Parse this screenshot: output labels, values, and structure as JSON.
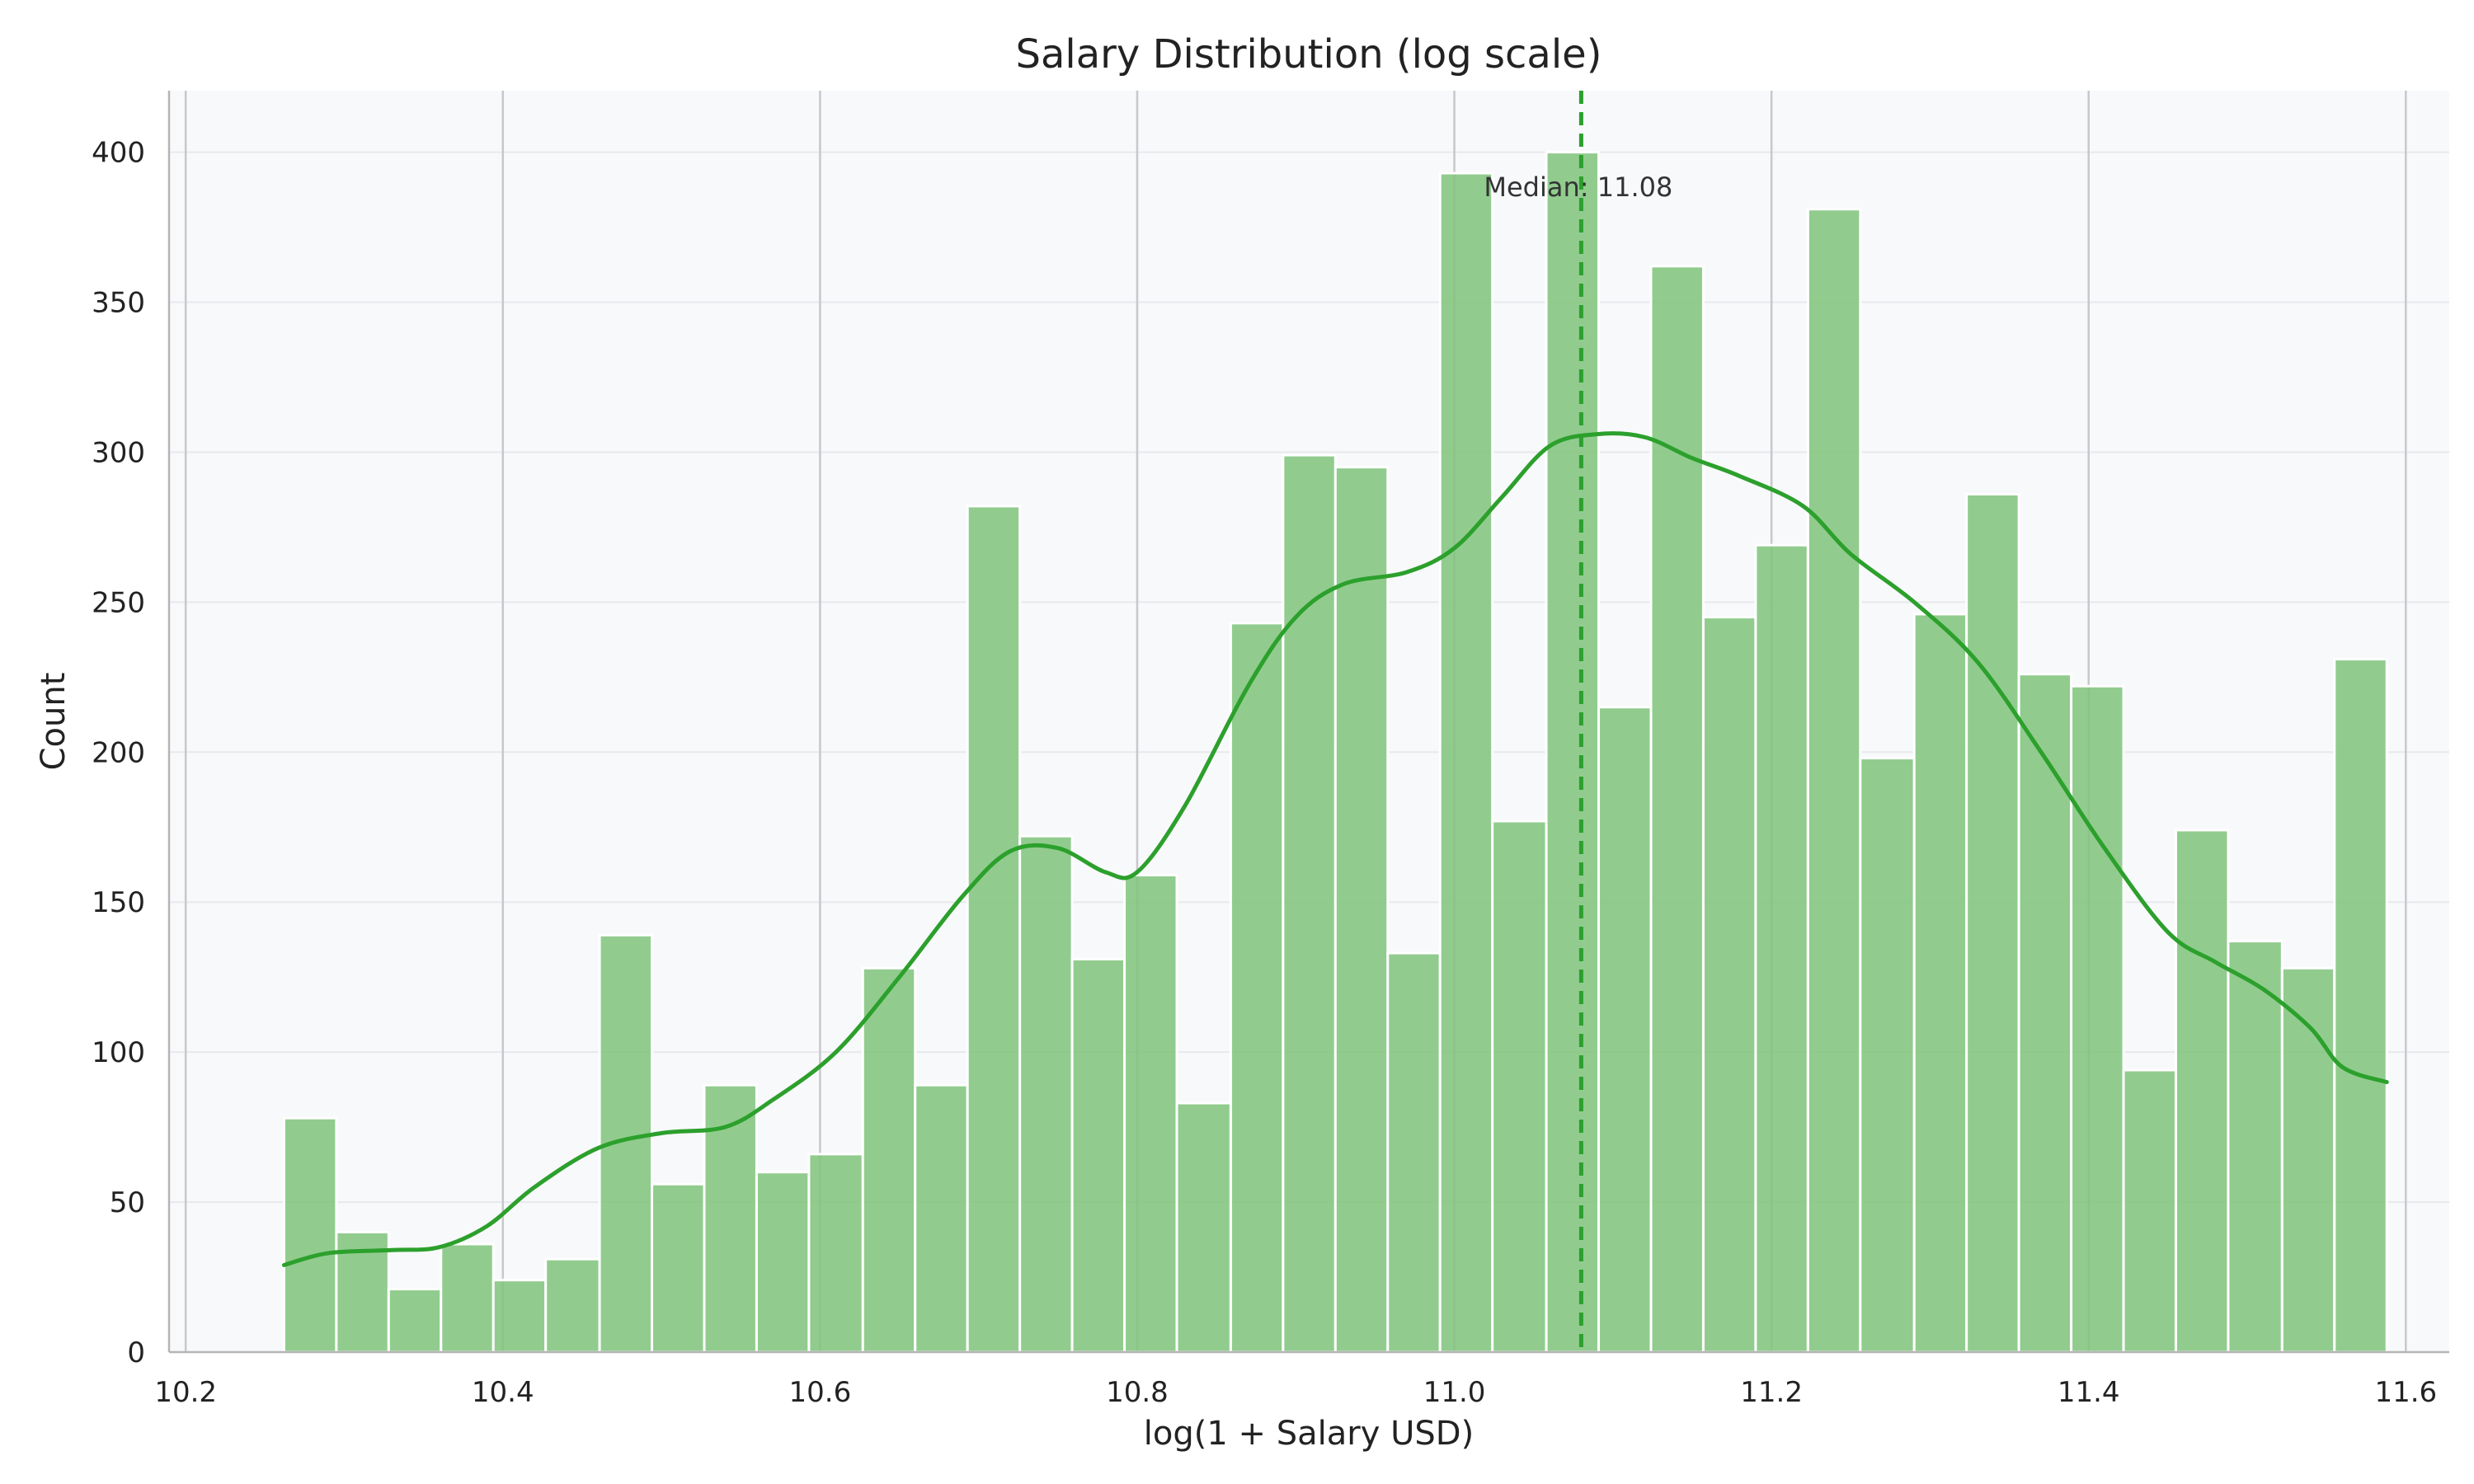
{
  "chart_data": {
    "type": "bar",
    "title": "Salary Distribution (log scale)",
    "xlabel": "log(1 + Salary USD)",
    "ylabel": "Count",
    "xlim": [
      10.2,
      11.6
    ],
    "ylim": [
      0,
      420
    ],
    "x_ticks": [
      "10.2",
      "10.4",
      "10.6",
      "10.8",
      "11.0",
      "11.2",
      "11.4",
      "11.6"
    ],
    "y_ticks": [
      "0",
      "50",
      "100",
      "150",
      "200",
      "250",
      "300",
      "350",
      "400"
    ],
    "grid": true,
    "bin_edges": [
      10.262,
      10.295,
      10.328,
      10.361,
      10.394,
      10.427,
      10.461,
      10.494,
      10.527,
      10.56,
      10.593,
      10.627,
      10.66,
      10.693,
      10.726,
      10.759,
      10.792,
      10.825,
      10.859,
      10.892,
      10.925,
      10.958,
      10.991,
      11.024,
      11.058,
      11.091,
      11.124,
      11.157,
      11.19,
      11.223,
      11.256,
      11.29,
      11.323,
      11.356,
      11.389,
      11.422,
      11.455,
      11.488,
      11.522,
      11.555,
      11.588
    ],
    "counts": [
      78,
      40,
      21,
      36,
      24,
      31,
      139,
      56,
      89,
      60,
      66,
      128,
      89,
      282,
      172,
      131,
      159,
      83,
      243,
      299,
      295,
      133,
      393,
      177,
      400,
      215,
      362,
      245,
      269,
      381,
      198,
      246,
      286,
      226,
      222,
      94,
      174,
      137,
      128,
      231
    ],
    "kde": {
      "x": [
        10.262,
        10.29,
        10.33,
        10.36,
        10.39,
        10.42,
        10.46,
        10.5,
        10.54,
        10.57,
        10.61,
        10.65,
        10.69,
        10.72,
        10.75,
        10.78,
        10.8,
        10.83,
        10.87,
        10.9,
        10.93,
        10.97,
        11.0,
        11.03,
        11.06,
        11.09,
        11.12,
        11.15,
        11.18,
        11.22,
        11.25,
        11.29,
        11.33,
        11.37,
        11.41,
        11.45,
        11.48,
        11.51,
        11.54,
        11.56,
        11.588
      ],
      "y": [
        29,
        33,
        34,
        35,
        42,
        55,
        68,
        73,
        75,
        84,
        100,
        125,
        152,
        167,
        168,
        160,
        160,
        182,
        222,
        245,
        256,
        260,
        268,
        285,
        302,
        306,
        305,
        298,
        292,
        282,
        266,
        250,
        230,
        200,
        168,
        140,
        130,
        121,
        108,
        95,
        90
      ]
    },
    "median": {
      "value": 11.08,
      "label": "Median: 11.08"
    },
    "colors": {
      "bar": "#7fc47a",
      "bar_edge": "#ffffff",
      "kde": "#2ca02c",
      "median": "#2ca02c",
      "plot_bg": "#f8f9fb",
      "grid_major": "#c8c8cc",
      "grid_minor": "#e8e9ec",
      "axis": "#b5b5b5"
    }
  }
}
